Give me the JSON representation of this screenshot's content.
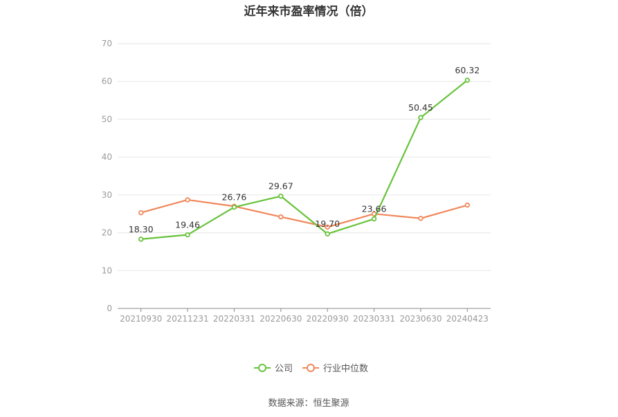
{
  "chart_data": {
    "type": "line",
    "title": "近年来市盈率情况（倍）",
    "categories": [
      "20210930",
      "20211231",
      "20220331",
      "20220630",
      "20220930",
      "20230331",
      "20230630",
      "20240423"
    ],
    "ylim": [
      0,
      70
    ],
    "yticks": [
      0,
      10,
      20,
      30,
      40,
      50,
      60,
      70
    ],
    "grid": true,
    "legend_position": "bottom",
    "series": [
      {
        "name": "公司",
        "color": "#67c23a",
        "values": [
          18.3,
          19.46,
          26.76,
          29.67,
          19.7,
          23.66,
          50.45,
          60.32
        ],
        "labels": [
          "18.30",
          "19.46",
          "26.76",
          "29.67",
          "19.70",
          "23.66",
          "50.45",
          "60.32"
        ]
      },
      {
        "name": "行业中位数",
        "color": "#f0875a",
        "values": [
          25.3,
          28.7,
          27.0,
          24.2,
          21.5,
          25.0,
          23.8,
          27.3
        ]
      }
    ]
  },
  "source_text": "数据来源：恒生聚源"
}
